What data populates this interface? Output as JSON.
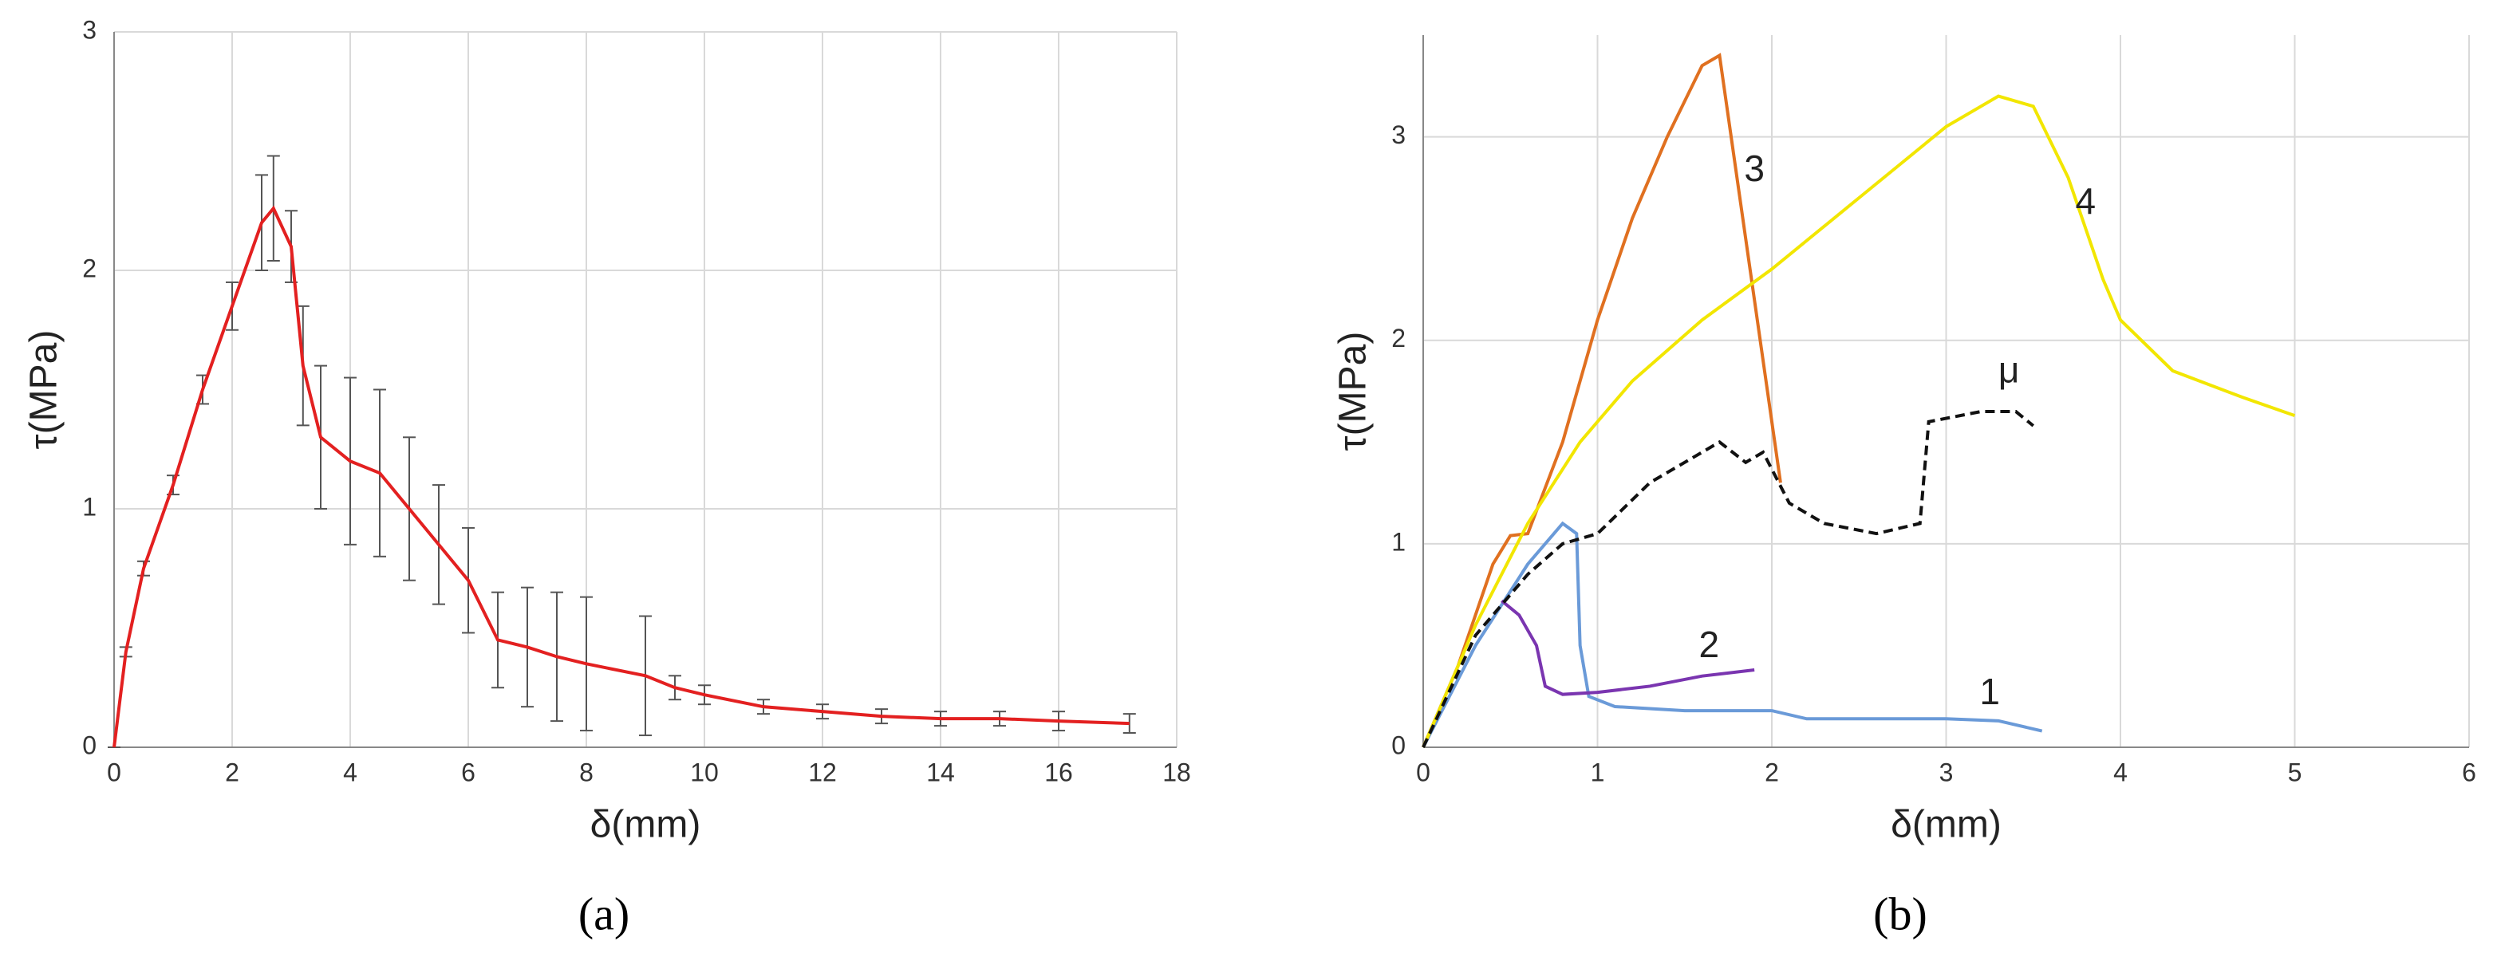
{
  "chart_data": [
    {
      "type": "errorline",
      "caption": "(a)",
      "x_label": "δ(mm)",
      "y_label": "τ(MPa)",
      "xlim": [
        0,
        18
      ],
      "xticks": [
        0,
        2,
        4,
        6,
        8,
        10,
        12,
        14,
        16,
        18
      ],
      "ylim": [
        0,
        3
      ],
      "yticks": [
        0,
        1,
        2,
        3
      ],
      "grid": true,
      "color": "#e32020",
      "error_color": "#555555",
      "x": [
        0,
        0.2,
        0.5,
        1,
        1.5,
        2,
        2.5,
        2.7,
        3,
        3.2,
        3.5,
        4,
        4.5,
        5,
        5.5,
        6,
        6.5,
        7,
        7.5,
        8,
        9,
        9.5,
        10,
        11,
        12,
        13,
        14,
        15,
        16,
        17.2
      ],
      "values": [
        0,
        0.4,
        0.75,
        1.1,
        1.5,
        1.85,
        2.2,
        2.26,
        2.1,
        1.6,
        1.3,
        1.2,
        1.15,
        1.0,
        0.85,
        0.7,
        0.45,
        0.42,
        0.38,
        0.35,
        0.3,
        0.25,
        0.22,
        0.17,
        0.15,
        0.13,
        0.12,
        0.12,
        0.11,
        0.1
      ],
      "errors": [
        0,
        0.02,
        0.03,
        0.04,
        0.06,
        0.1,
        0.2,
        0.22,
        0.15,
        0.25,
        0.3,
        0.35,
        0.35,
        0.3,
        0.25,
        0.22,
        0.2,
        0.25,
        0.27,
        0.28,
        0.25,
        0.05,
        0.04,
        0.03,
        0.03,
        0.03,
        0.03,
        0.03,
        0.04,
        0.04
      ]
    },
    {
      "type": "line",
      "caption": "(b)",
      "x_label": "δ(mm)",
      "y_label": "τ(MPa)",
      "xlim": [
        0,
        6
      ],
      "xticks": [
        0,
        1,
        2,
        3,
        4,
        5,
        6
      ],
      "ylim": [
        0,
        3.5
      ],
      "yticks": [
        0,
        1,
        2,
        3
      ],
      "grid": true,
      "series": [
        {
          "name": "1",
          "color": "#6a9ad8",
          "dashed": false,
          "x": [
            0,
            0.3,
            0.6,
            0.8,
            0.88,
            0.9,
            0.95,
            1.1,
            1.5,
            2,
            2.2,
            3,
            3.3,
            3.55
          ],
          "values": [
            0,
            0.5,
            0.9,
            1.1,
            1.05,
            0.5,
            0.25,
            0.2,
            0.18,
            0.18,
            0.14,
            0.14,
            0.13,
            0.08
          ]
        },
        {
          "name": "2",
          "color": "#7a35b0",
          "dashed": false,
          "x": [
            0.45,
            0.55,
            0.65,
            0.7,
            0.8,
            1.0,
            1.3,
            1.6,
            1.9
          ],
          "values": [
            0.72,
            0.65,
            0.5,
            0.3,
            0.26,
            0.27,
            0.3,
            0.35,
            0.38
          ]
        },
        {
          "name": "3",
          "color": "#e07020",
          "dashed": false,
          "x": [
            0,
            0.2,
            0.4,
            0.5,
            0.6,
            0.8,
            1.0,
            1.2,
            1.4,
            1.6,
            1.7,
            2.05
          ],
          "values": [
            0,
            0.4,
            0.9,
            1.04,
            1.05,
            1.5,
            2.1,
            2.6,
            3.0,
            3.35,
            3.4,
            1.3
          ]
        },
        {
          "name": "4",
          "color": "#f2e600",
          "dashed": false,
          "x": [
            0,
            0.3,
            0.6,
            0.9,
            1.2,
            1.6,
            2.0,
            2.5,
            3.0,
            3.3,
            3.5,
            3.7,
            3.9,
            4.0,
            4.3,
            4.7,
            5.0
          ],
          "values": [
            0,
            0.6,
            1.1,
            1.5,
            1.8,
            2.1,
            2.35,
            2.7,
            3.05,
            3.2,
            3.15,
            2.8,
            2.3,
            2.1,
            1.85,
            1.72,
            1.63
          ]
        },
        {
          "name": "μ",
          "color": "#111111",
          "dashed": true,
          "x": [
            0,
            0.3,
            0.6,
            0.8,
            1.0,
            1.3,
            1.7,
            1.85,
            1.95,
            2.1,
            2.3,
            2.6,
            2.85,
            2.9,
            3.2,
            3.4,
            3.5
          ],
          "values": [
            0,
            0.55,
            0.85,
            1.0,
            1.05,
            1.3,
            1.5,
            1.4,
            1.45,
            1.2,
            1.1,
            1.05,
            1.1,
            1.6,
            1.65,
            1.65,
            1.58
          ]
        }
      ]
    }
  ]
}
